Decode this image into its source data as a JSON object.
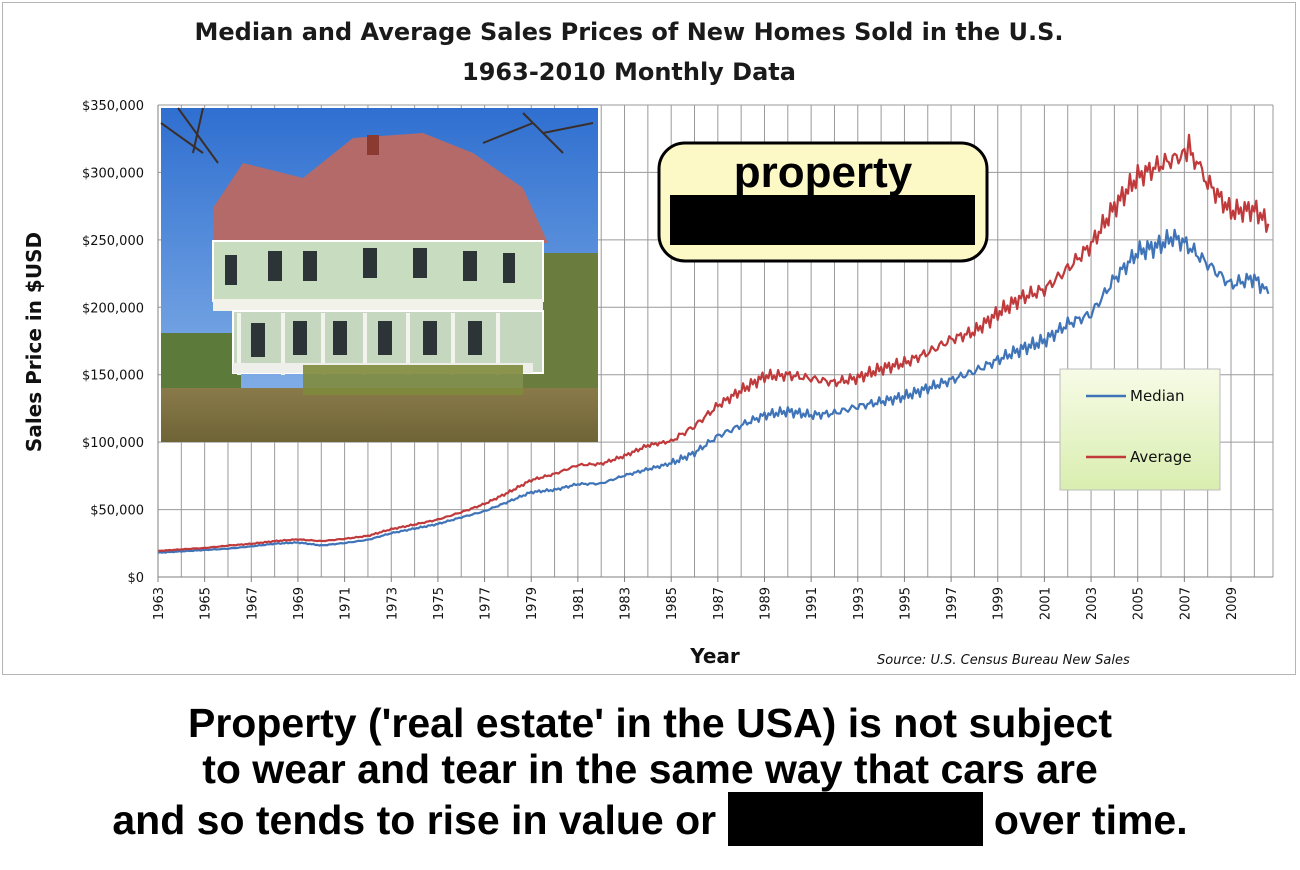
{
  "chart_data": {
    "type": "line",
    "title": "Median and Average Sales Prices of New Homes Sold in the U.S.",
    "subtitle": "1963-2010 Monthly Data",
    "xlabel": "Year",
    "ylabel": "Sales Price in $USD",
    "source": "Source:  U.S. Census Bureau New Sales",
    "xlim": [
      1963,
      2010.8
    ],
    "ylim": [
      0,
      350000
    ],
    "y_ticks": [
      0,
      50000,
      100000,
      150000,
      200000,
      250000,
      300000,
      350000
    ],
    "y_tick_labels": [
      "$0",
      "$50,000",
      "$100,000",
      "$150,000",
      "$200,000",
      "$250,000",
      "$300,000",
      "$350,000"
    ],
    "x_tick_labels": [
      "1963",
      "1965",
      "1967",
      "1969",
      "1971",
      "1973",
      "1975",
      "1977",
      "1979",
      "1981",
      "1983",
      "1985",
      "1987",
      "1989",
      "1991",
      "1993",
      "1995",
      "1997",
      "1999",
      "2001",
      "2003",
      "2005",
      "2007",
      "2009"
    ],
    "grid": true,
    "legend_position": "right",
    "series": [
      {
        "name": "Median",
        "color": "#3f74b8",
        "x": [
          1963,
          1964,
          1965,
          1966,
          1967,
          1968,
          1969,
          1970,
          1971,
          1972,
          1973,
          1974,
          1975,
          1976,
          1977,
          1978,
          1979,
          1980,
          1981,
          1982,
          1983,
          1984,
          1985,
          1986,
          1987,
          1988,
          1989,
          1990,
          1991,
          1992,
          1993,
          1994,
          1995,
          1996,
          1997,
          1998,
          1999,
          2000,
          2001,
          2002,
          2003,
          2004,
          2005,
          2006,
          2006.5,
          2007,
          2008,
          2009,
          2010,
          2010.6
        ],
        "values": [
          18000,
          19000,
          20000,
          21000,
          22700,
          24700,
          25600,
          23400,
          25200,
          27600,
          32500,
          35900,
          39300,
          44200,
          48800,
          55700,
          62900,
          64600,
          68900,
          69300,
          75300,
          79900,
          84300,
          92000,
          104500,
          112500,
          120000,
          122900,
          120000,
          121500,
          126500,
          130000,
          133900,
          140000,
          146000,
          152500,
          161000,
          169000,
          175200,
          187600,
          195000,
          221000,
          240900,
          246500,
          252000,
          247900,
          232100,
          216700,
          221800,
          210000
        ]
      },
      {
        "name": "Average",
        "color": "#c0393b",
        "x": [
          1963,
          1964,
          1965,
          1966,
          1967,
          1968,
          1969,
          1970,
          1971,
          1972,
          1973,
          1974,
          1975,
          1976,
          1977,
          1978,
          1979,
          1980,
          1981,
          1982,
          1983,
          1984,
          1985,
          1986,
          1987,
          1988,
          1989,
          1990,
          1991,
          1992,
          1993,
          1994,
          1995,
          1996,
          1997,
          1998,
          1999,
          2000,
          2001,
          2002,
          2003,
          2004,
          2005,
          2006,
          2007,
          2007.2,
          2008,
          2009,
          2010,
          2010.6
        ],
        "values": [
          19300,
          20500,
          21500,
          23300,
          24600,
          26600,
          27900,
          26600,
          28300,
          30500,
          35500,
          38900,
          42600,
          48000,
          54200,
          62500,
          71800,
          76400,
          83000,
          83900,
          89800,
          97600,
          100800,
          111900,
          127200,
          138300,
          148800,
          149800,
          147200,
          144100,
          147700,
          154500,
          158700,
          166400,
          176200,
          181900,
          195600,
          207000,
          213200,
          228700,
          246300,
          274500,
          297000,
          305900,
          313600,
          318000,
          292600,
          270900,
          272900,
          262000
        ]
      }
    ]
  },
  "notice": {
    "word": "property"
  },
  "caption": {
    "line1": "Property ('real estate' in the USA) is not subject",
    "line2": "to wear and tear in the same way that cars are",
    "line3_before": "and so tends to rise in value or",
    "line3_after": "over time."
  }
}
